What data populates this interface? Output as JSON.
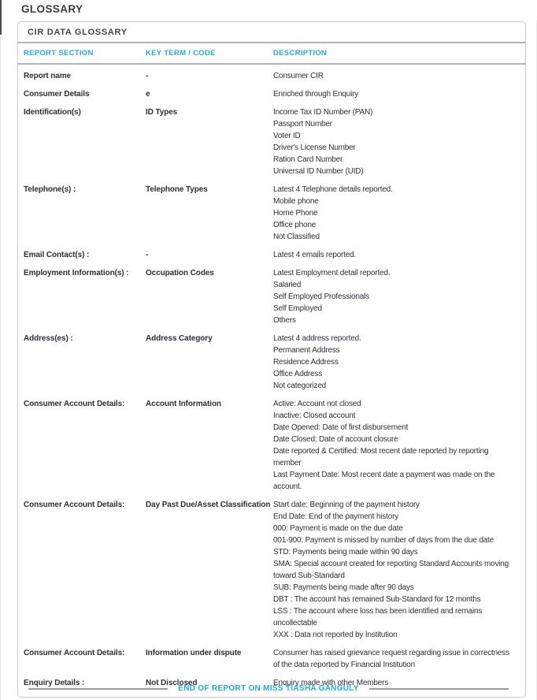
{
  "page": {
    "title": "GLOSSARY",
    "card_title": "CIR DATA GLOSSARY",
    "footer": "END OF REPORT ON MISS TIASHA GANGULY"
  },
  "colors": {
    "accent_cyan": "#29a8d2",
    "body_text": "#2e2e37",
    "card_border": "#c9c9c9",
    "rule_gray": "#b3b3b3",
    "footer_rule": "#9b9b9b"
  },
  "table": {
    "columns": [
      "REPORT SECTION",
      "KEY TERM / CODE",
      "DESCRIPTION"
    ],
    "rows": [
      {
        "section": "Report name",
        "key": "-",
        "desc": [
          "Consumer CIR"
        ]
      },
      {
        "section": "Consumer Details",
        "key": "e",
        "desc": [
          "Enriched through Enquiry"
        ]
      },
      {
        "section": "Identification(s)",
        "key": "ID Types",
        "desc": [
          "Income Tax ID Number (PAN)",
          "Passport Number",
          "Voter ID",
          "Driver's License Number",
          "Ration Card Number",
          "Universal ID Number (UID)"
        ]
      },
      {
        "section": "Telephone(s) :",
        "key": "Telephone Types",
        "desc": [
          "Latest 4 Telephone details reported.",
          "Mobile phone",
          "Home Phone",
          "Office phone",
          "Not Classified"
        ]
      },
      {
        "section": "Email Contact(s) :",
        "key": "-",
        "desc": [
          "Latest 4 emails reported."
        ]
      },
      {
        "section": "Employment Information(s) :",
        "key": "Occupation Codes",
        "desc": [
          "Latest Employment detail reported.",
          "Salaried",
          "Self Employed Professionals",
          "Self Employed",
          "Others"
        ]
      },
      {
        "section": "Address(es) :",
        "key": "Address Category",
        "desc": [
          "Latest 4 address reported.",
          "Permanent Address",
          "Residence Address",
          "Office Address",
          "Not categorized"
        ]
      },
      {
        "section": "Consumer Account Details:",
        "key": "Account Information",
        "desc": [
          "Active: Account not closed",
          "Inactive: Closed account",
          "Date Opened: Date of first disbursement",
          "Date Closed: Date of account closure",
          "Date reported & Certified: Most recent date reported by reporting member",
          "Last Payment Date: Most recent date a payment was made on the account."
        ]
      },
      {
        "section": "Consumer Account Details:",
        "key": "Day Past Due/Asset Classification",
        "desc": [
          "Start date: Beginning of the payment history",
          "End Date: End of the payment history",
          "000: Payment is made on the due date",
          "001-900: Payment is missed by number of days from the due date",
          "STD: Payments being made within 90 days",
          "SMA: Special account created for reporting Standard Accounts moving toward Sub-Standard",
          "SUB: Payments being made after 90 days",
          "DBT : The account has remained Sub-Standard for 12 months",
          "LSS : The account where loss has been identified and remains uncollectable",
          "XXX : Data not reported by Institution"
        ]
      },
      {
        "section": "Consumer Account Details:",
        "key": "Information under dispute",
        "desc": [
          "Consumer has raised grievance request regarding issue in correctness of the data reported by Financial Institution"
        ]
      },
      {
        "section": "Enquiry Details :",
        "key": "Not Disclosed",
        "desc": [
          "Enquiry made with other Members"
        ]
      }
    ]
  }
}
